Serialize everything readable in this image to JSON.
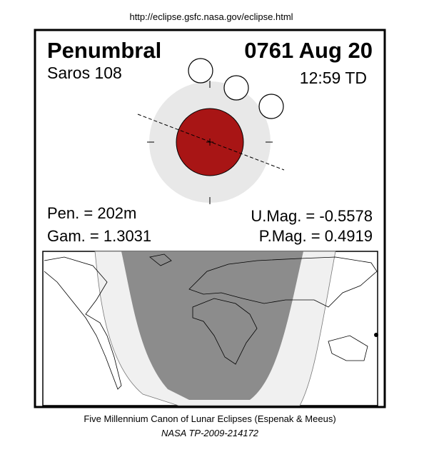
{
  "url": "http://eclipse.gsfc.nasa.gov/eclipse.html",
  "header": {
    "type": "Penumbral",
    "date": "0761 Aug 20",
    "saros": "Saros 108",
    "time": "12:59 TD"
  },
  "stats": {
    "pen": "Pen. = 202m",
    "umag": "U.Mag. = -0.5578",
    "gam": "Gam. = 1.3031",
    "pmag": "P.Mag. = 0.4919"
  },
  "footer": {
    "canon": "Five Millennium Canon of Lunar Eclipses (Espenak & Meeus)",
    "ref": "NASA TP-2009-214172"
  }
}
